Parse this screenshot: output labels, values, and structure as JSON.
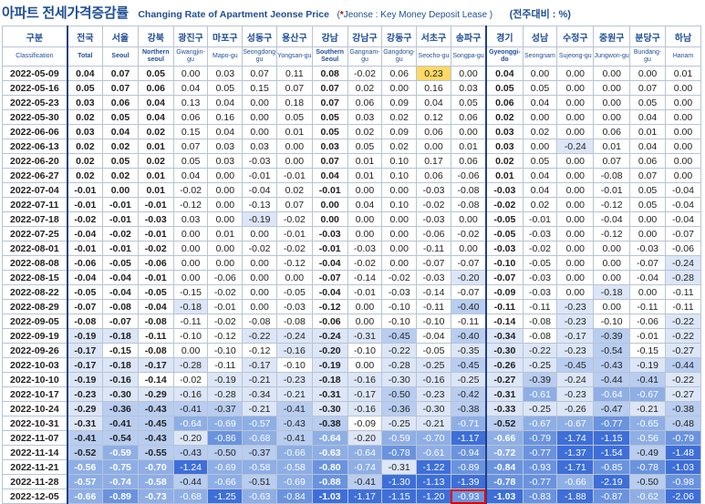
{
  "title": {
    "korean": "아파트 전세가격증감률",
    "english": "Changing Rate of Apartment Jeonse Price",
    "note_prefix": "(",
    "note_star": "*",
    "note_body": " Jeonse : Key Money Deposit Lease )",
    "unit": "(전주대비 : %)"
  },
  "colors": {
    "header_text": "#1f4e96",
    "border": "#b9c4d3",
    "highlight_yellow": "#ffd966",
    "highlight_box": "#e00000",
    "scale_light": "#dde6f5",
    "scale_mid": "#8fb0e6",
    "scale_dark": "#3a6fd8"
  },
  "columns": [
    {
      "kr": "구분",
      "en": "Classification"
    },
    {
      "kr": "전국",
      "en": "Total"
    },
    {
      "kr": "서울",
      "en": "Seoul"
    },
    {
      "kr": "강북",
      "en": "Northern seoul"
    },
    {
      "kr": "광진구",
      "en": "Gwangjin-gu"
    },
    {
      "kr": "마포구",
      "en": "Mapo-gu"
    },
    {
      "kr": "성동구",
      "en": "Seongdong-gu"
    },
    {
      "kr": "용산구",
      "en": "Yongsan-gu"
    },
    {
      "kr": "강남",
      "en": "Southern Seoul"
    },
    {
      "kr": "강남구",
      "en": "Gangnam-gu"
    },
    {
      "kr": "강동구",
      "en": "Gangdong-gu"
    },
    {
      "kr": "서초구",
      "en": "Seocho-gu"
    },
    {
      "kr": "송파구",
      "en": "Songpa-gu"
    },
    {
      "kr": "경기",
      "en": "Gyeonggi-do"
    },
    {
      "kr": "성남",
      "en": "Seongnam"
    },
    {
      "kr": "수정구",
      "en": "Sujeong-gu"
    },
    {
      "kr": "중원구",
      "en": "Jungwon-gu"
    },
    {
      "kr": "분당구",
      "en": "Bundang-gu"
    },
    {
      "kr": "하남",
      "en": "Hanam"
    }
  ],
  "rows": [
    [
      "2022-05-09",
      "0.04",
      "0.07",
      "0.05",
      "0.00",
      "0.03",
      "0.07",
      "0.11",
      "0.08",
      "-0.02",
      "0.06",
      "0.23",
      "0.00",
      "0.04",
      "0.00",
      "0.00",
      "0.00",
      "0.00",
      "0.01"
    ],
    [
      "2022-05-16",
      "0.05",
      "0.07",
      "0.06",
      "0.04",
      "0.05",
      "0.15",
      "0.07",
      "0.07",
      "0.02",
      "0.00",
      "0.16",
      "0.03",
      "0.05",
      "0.05",
      "0.00",
      "0.00",
      "0.07",
      "0.00"
    ],
    [
      "2022-05-23",
      "0.03",
      "0.06",
      "0.04",
      "0.13",
      "0.04",
      "0.00",
      "0.18",
      "0.07",
      "0.06",
      "0.09",
      "0.04",
      "0.05",
      "0.06",
      "0.04",
      "0.00",
      "0.00",
      "0.05",
      "0.00"
    ],
    [
      "2022-05-30",
      "0.02",
      "0.05",
      "0.04",
      "0.06",
      "0.16",
      "0.00",
      "0.05",
      "0.05",
      "0.03",
      "0.02",
      "0.12",
      "0.06",
      "0.02",
      "0.00",
      "0.00",
      "0.00",
      "0.04",
      "0.00"
    ],
    [
      "2022-06-06",
      "0.03",
      "0.04",
      "0.02",
      "0.15",
      "0.04",
      "0.00",
      "0.01",
      "0.05",
      "0.02",
      "0.09",
      "0.06",
      "0.00",
      "0.03",
      "0.02",
      "0.00",
      "0.06",
      "0.01",
      "0.00"
    ],
    [
      "2022-06-13",
      "0.02",
      "0.02",
      "0.01",
      "0.07",
      "0.03",
      "0.03",
      "0.00",
      "0.03",
      "0.05",
      "0.02",
      "0.00",
      "0.01",
      "0.03",
      "0.00",
      "-0.24",
      "0.01",
      "0.04",
      "0.00"
    ],
    [
      "2022-06-20",
      "0.02",
      "0.05",
      "0.02",
      "0.05",
      "0.03",
      "-0.03",
      "0.00",
      "0.07",
      "0.01",
      "0.10",
      "0.17",
      "0.06",
      "0.02",
      "0.05",
      "0.00",
      "0.07",
      "0.06",
      "0.00"
    ],
    [
      "2022-06-27",
      "0.02",
      "0.02",
      "0.01",
      "0.04",
      "0.00",
      "-0.01",
      "-0.01",
      "0.04",
      "0.01",
      "0.10",
      "0.06",
      "-0.06",
      "0.01",
      "0.04",
      "0.00",
      "-0.08",
      "0.07",
      "0.00"
    ],
    [
      "2022-07-04",
      "-0.01",
      "0.00",
      "0.01",
      "-0.02",
      "0.00",
      "-0.04",
      "0.02",
      "-0.01",
      "0.00",
      "0.00",
      "-0.03",
      "-0.08",
      "-0.03",
      "0.04",
      "0.00",
      "-0.01",
      "0.05",
      "-0.04"
    ],
    [
      "2022-07-11",
      "-0.01",
      "-0.01",
      "-0.01",
      "-0.12",
      "0.00",
      "-0.13",
      "0.07",
      "0.00",
      "0.04",
      "0.10",
      "-0.02",
      "-0.08",
      "-0.02",
      "0.02",
      "0.00",
      "-0.12",
      "0.05",
      "-0.04"
    ],
    [
      "2022-07-18",
      "-0.02",
      "-0.01",
      "-0.03",
      "0.03",
      "0.00",
      "-0.19",
      "-0.02",
      "0.00",
      "0.00",
      "0.00",
      "-0.03",
      "0.00",
      "-0.05",
      "-0.01",
      "0.00",
      "-0.04",
      "0.00",
      "-0.04"
    ],
    [
      "2022-07-25",
      "-0.04",
      "-0.02",
      "-0.01",
      "0.00",
      "0.01",
      "0.00",
      "-0.01",
      "-0.03",
      "0.00",
      "0.00",
      "-0.06",
      "-0.02",
      "-0.05",
      "-0.03",
      "0.00",
      "-0.12",
      "0.00",
      "-0.07"
    ],
    [
      "2022-08-01",
      "-0.01",
      "-0.01",
      "-0.02",
      "0.00",
      "0.00",
      "-0.02",
      "-0.02",
      "-0.01",
      "-0.03",
      "0.00",
      "-0.11",
      "0.00",
      "-0.03",
      "-0.02",
      "0.00",
      "0.00",
      "-0.03",
      "-0.06"
    ],
    [
      "2022-08-08",
      "-0.06",
      "-0.05",
      "-0.06",
      "0.00",
      "0.00",
      "0.00",
      "-0.12",
      "-0.04",
      "-0.02",
      "0.00",
      "-0.07",
      "-0.07",
      "-0.10",
      "-0.05",
      "0.00",
      "0.00",
      "-0.07",
      "-0.24"
    ],
    [
      "2022-08-15",
      "-0.04",
      "-0.04",
      "-0.01",
      "0.00",
      "-0.06",
      "0.00",
      "0.00",
      "-0.07",
      "-0.14",
      "-0.02",
      "-0.03",
      "-0.20",
      "-0.07",
      "-0.03",
      "0.00",
      "0.00",
      "-0.04",
      "-0.28"
    ],
    [
      "2022-08-22",
      "-0.05",
      "-0.04",
      "-0.05",
      "-0.15",
      "-0.02",
      "0.00",
      "-0.05",
      "-0.04",
      "-0.01",
      "-0.03",
      "-0.14",
      "-0.07",
      "-0.09",
      "-0.03",
      "0.00",
      "-0.18",
      "0.00",
      "-0.11"
    ],
    [
      "2022-08-29",
      "-0.07",
      "-0.08",
      "-0.04",
      "-0.18",
      "-0.01",
      "0.00",
      "-0.03",
      "-0.12",
      "0.00",
      "-0.10",
      "-0.11",
      "-0.40",
      "-0.11",
      "-0.11",
      "-0.23",
      "0.00",
      "-0.11",
      "-0.11"
    ],
    [
      "2022-09-05",
      "-0.08",
      "-0.07",
      "-0.08",
      "-0.11",
      "-0.02",
      "-0.08",
      "-0.08",
      "-0.06",
      "0.00",
      "-0.10",
      "-0.10",
      "-0.11",
      "-0.14",
      "-0.08",
      "-0.23",
      "-0.10",
      "-0.06",
      "-0.22"
    ],
    [
      "2022-09-19",
      "-0.19",
      "-0.18",
      "-0.11",
      "-0.10",
      "-0.12",
      "-0.22",
      "-0.24",
      "-0.24",
      "-0.31",
      "-0.45",
      "-0.04",
      "-0.40",
      "-0.34",
      "-0.08",
      "-0.17",
      "-0.39",
      "-0.01",
      "-0.22"
    ],
    [
      "2022-09-26",
      "-0.17",
      "-0.15",
      "-0.08",
      "0.00",
      "-0.10",
      "-0.12",
      "-0.16",
      "-0.20",
      "-0.10",
      "-0.22",
      "-0.05",
      "-0.35",
      "-0.30",
      "-0.22",
      "-0.23",
      "-0.54",
      "-0.15",
      "-0.27"
    ],
    [
      "2022-10-03",
      "-0.17",
      "-0.18",
      "-0.17",
      "-0.28",
      "-0.11",
      "-0.17",
      "-0.10",
      "-0.19",
      "0.00",
      "-0.28",
      "-0.25",
      "-0.45",
      "-0.26",
      "-0.25",
      "-0.45",
      "-0.43",
      "-0.19",
      "-0.44"
    ],
    [
      "2022-10-10",
      "-0.19",
      "-0.16",
      "-0.14",
      "-0.02",
      "-0.19",
      "-0.21",
      "-0.23",
      "-0.18",
      "-0.16",
      "-0.30",
      "-0.16",
      "-0.25",
      "-0.27",
      "-0.39",
      "-0.24",
      "-0.44",
      "-0.41",
      "-0.22"
    ],
    [
      "2022-10-17",
      "-0.23",
      "-0.30",
      "-0.29",
      "-0.16",
      "-0.28",
      "-0.34",
      "-0.21",
      "-0.31",
      "-0.17",
      "-0.50",
      "-0.23",
      "-0.42",
      "-0.31",
      "-0.61",
      "-0.23",
      "-0.64",
      "-0.67",
      "-0.27"
    ],
    [
      "2022-10-24",
      "-0.29",
      "-0.36",
      "-0.43",
      "-0.41",
      "-0.37",
      "-0.21",
      "-0.41",
      "-0.30",
      "-0.16",
      "-0.36",
      "-0.30",
      "-0.38",
      "-0.33",
      "-0.25",
      "-0.26",
      "-0.47",
      "-0.21",
      "-0.38"
    ],
    [
      "2022-10-31",
      "-0.31",
      "-0.41",
      "-0.45",
      "-0.64",
      "-0.69",
      "-0.57",
      "-0.43",
      "-0.38",
      "-0.09",
      "-0.25",
      "-0.21",
      "-0.71",
      "-0.52",
      "-0.67",
      "-0.67",
      "-0.77",
      "-0.65",
      "-0.48"
    ],
    [
      "2022-11-07",
      "-0.41",
      "-0.54",
      "-0.43",
      "-0.20",
      "-0.86",
      "-0.68",
      "-0.41",
      "-0.64",
      "-0.20",
      "-0.59",
      "-0.70",
      "-1.17",
      "-0.66",
      "-0.79",
      "-1.74",
      "-1.15",
      "-0.56",
      "-0.79"
    ],
    [
      "2022-11-14",
      "-0.52",
      "-0.59",
      "-0.55",
      "-0.43",
      "-0.50",
      "-0.37",
      "-0.66",
      "-0.63",
      "-0.64",
      "-0.78",
      "-0.61",
      "-0.94",
      "-0.72",
      "-0.77",
      "-1.37",
      "-1.54",
      "-0.49",
      "-1.48"
    ],
    [
      "2022-11-21",
      "-0.56",
      "-0.75",
      "-0.70",
      "-1.24",
      "-0.69",
      "-0.58",
      "-0.58",
      "-0.80",
      "-0.74",
      "-0.31",
      "-1.22",
      "-0.89",
      "-0.84",
      "-0.93",
      "-1.71",
      "-0.85",
      "-0.78",
      "-1.03"
    ],
    [
      "2022-11-28",
      "-0.57",
      "-0.74",
      "-0.58",
      "-0.44",
      "-0.66",
      "-0.51",
      "-0.69",
      "-0.88",
      "-0.41",
      "-1.30",
      "-1.13",
      "-1.39",
      "-0.78",
      "-0.77",
      "-0.66",
      "-2.19",
      "-0.50",
      "-0.98"
    ],
    [
      "2022-12-05",
      "-0.66",
      "-0.89",
      "-0.73",
      "-0.68",
      "-1.25",
      "-0.63",
      "-0.84",
      "-1.03",
      "-1.17",
      "-1.15",
      "-1.20",
      "-0.93",
      "-1.03",
      "-0.83",
      "-1.88",
      "-0.87",
      "-0.62",
      "-2.06"
    ]
  ],
  "highlights": {
    "yellow_cell": {
      "row": 0,
      "col": 11
    },
    "boxed_cell": {
      "row": 29,
      "col": 12
    }
  }
}
